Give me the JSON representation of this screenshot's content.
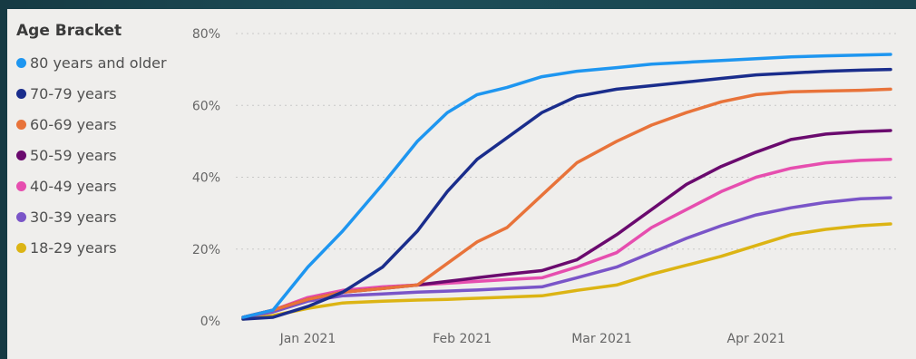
{
  "chart_data": {
    "type": "line",
    "legend_title": "Age Bracket",
    "legend_position": "left",
    "yticks": [
      "0%",
      "20%",
      "40%",
      "60%",
      "80%"
    ],
    "ylim": [
      0,
      80
    ],
    "xticks": [
      {
        "label": "Jan 2021",
        "x": 13
      },
      {
        "label": "Feb 2021",
        "x": 44
      },
      {
        "label": "Mar 2021",
        "x": 72
      },
      {
        "label": "Apr 2021",
        "x": 103
      }
    ],
    "xlim": [
      0,
      130
    ],
    "grid": "dotted horizontal",
    "x": [
      0,
      6,
      13,
      20,
      28,
      35,
      41,
      47,
      53,
      60,
      67,
      75,
      82,
      89,
      96,
      103,
      110,
      117,
      124,
      130
    ],
    "series": [
      {
        "name": "80 years and older",
        "color": "#1e96f0",
        "values": [
          1,
          3,
          15,
          25,
          38,
          50,
          58,
          63,
          65,
          68,
          69.5,
          70.5,
          71.5,
          72,
          72.5,
          73,
          73.5,
          73.8,
          74,
          74.2
        ]
      },
      {
        "name": "70-79 years",
        "color": "#1a2d8c",
        "values": [
          0.5,
          1,
          4,
          8,
          15,
          25,
          36,
          45,
          51,
          58,
          62.5,
          64.5,
          65.5,
          66.5,
          67.5,
          68.5,
          69,
          69.5,
          69.8,
          70
        ]
      },
      {
        "name": "60-69 years",
        "color": "#e8733a",
        "values": [
          1,
          3,
          6,
          8,
          9,
          10,
          16,
          22,
          26,
          35,
          44,
          50,
          54.5,
          58,
          61,
          63,
          63.8,
          64,
          64.2,
          64.5
        ]
      },
      {
        "name": "50-59 years",
        "color": "#6a0a6e",
        "values": [
          1,
          3,
          6,
          8,
          9,
          10,
          11,
          12,
          13,
          14,
          17,
          24,
          31,
          38,
          43,
          47,
          50.5,
          52,
          52.7,
          53
        ]
      },
      {
        "name": "40-49 years",
        "color": "#e64eaf",
        "values": [
          1,
          3,
          6.5,
          8.5,
          9.5,
          10,
          10.5,
          11,
          11.5,
          12,
          15,
          19,
          26,
          31,
          36,
          40,
          42.5,
          44,
          44.7,
          45
        ]
      },
      {
        "name": "30-39 years",
        "color": "#7a55c8",
        "values": [
          1,
          2.5,
          5.5,
          7,
          7.5,
          8,
          8.3,
          8.6,
          9,
          9.5,
          12,
          15,
          19,
          23,
          26.5,
          29.5,
          31.5,
          33,
          34,
          34.3
        ]
      },
      {
        "name": "18-29 years",
        "color": "#dcb414",
        "values": [
          0.5,
          1.5,
          3.5,
          5,
          5.5,
          5.8,
          6,
          6.3,
          6.6,
          7,
          8.5,
          10,
          13,
          15.5,
          18,
          21,
          24,
          25.5,
          26.5,
          27
        ]
      }
    ]
  }
}
